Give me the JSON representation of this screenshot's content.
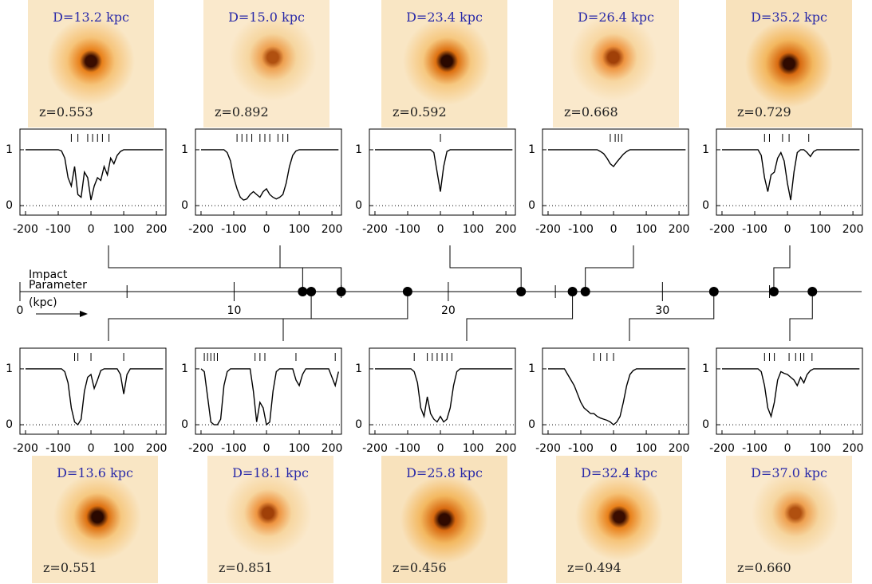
{
  "impact_axis": {
    "label_lines": [
      "Impact",
      "Parameter",
      "(kpc)"
    ],
    "xlim": [
      0,
      39.3
    ],
    "xticks": [
      0,
      10,
      20,
      30
    ],
    "minor_ticks": [
      5,
      15,
      25,
      35
    ]
  },
  "spectra": {
    "xlim": [
      -217,
      229
    ],
    "ylim": [
      -0.17,
      1.37
    ],
    "xticks": [
      -200,
      -100,
      0,
      100,
      200
    ],
    "yticks": [
      0,
      1
    ],
    "velocity": [
      -200,
      -190,
      -180,
      -170,
      -160,
      -150,
      -140,
      -130,
      -120,
      -110,
      -100,
      -90,
      -80,
      -70,
      -60,
      -50,
      -40,
      -30,
      -20,
      -10,
      0,
      10,
      20,
      30,
      40,
      50,
      60,
      70,
      80,
      90,
      100,
      110,
      120,
      130,
      140,
      150,
      160,
      170,
      180,
      190,
      200,
      210,
      220
    ]
  },
  "top_row": [
    {
      "distance": 13.2,
      "distance_label": "D=13.2 kpc",
      "redshift_label": "z=0.553",
      "components": [
        -60,
        -40,
        -10,
        5,
        20,
        35,
        55
      ],
      "flux": [
        1,
        1,
        1,
        1,
        1,
        1,
        1,
        1,
        1,
        1,
        1,
        0.98,
        0.85,
        0.5,
        0.35,
        0.7,
        0.2,
        0.15,
        0.6,
        0.5,
        0.1,
        0.35,
        0.5,
        0.45,
        0.7,
        0.55,
        0.85,
        0.75,
        0.9,
        0.97,
        1,
        1,
        1,
        1,
        1,
        1,
        1,
        1,
        1,
        1,
        1,
        1,
        1
      ]
    },
    {
      "distance": 15.0,
      "distance_label": "D=15.0 kpc",
      "redshift_label": "z=0.892",
      "components": [
        -90,
        -75,
        -60,
        -45,
        -20,
        -5,
        10,
        35,
        50,
        65
      ],
      "flux": [
        1,
        1,
        1,
        1,
        1,
        1,
        1,
        1,
        0.95,
        0.8,
        0.5,
        0.3,
        0.15,
        0.1,
        0.12,
        0.2,
        0.25,
        0.2,
        0.15,
        0.25,
        0.3,
        0.2,
        0.15,
        0.12,
        0.15,
        0.2,
        0.4,
        0.7,
        0.9,
        0.98,
        1,
        1,
        1,
        1,
        1,
        1,
        1,
        1,
        1,
        1,
        1,
        1,
        1
      ]
    },
    {
      "distance": 23.4,
      "distance_label": "D=23.4 kpc",
      "redshift_label": "z=0.592",
      "components": [
        0
      ],
      "flux": [
        1,
        1,
        1,
        1,
        1,
        1,
        1,
        1,
        1,
        1,
        1,
        1,
        1,
        1,
        1,
        1,
        1,
        1,
        0.95,
        0.6,
        0.25,
        0.7,
        0.97,
        1,
        1,
        1,
        1,
        1,
        1,
        1,
        1,
        1,
        1,
        1,
        1,
        1,
        1,
        1,
        1,
        1,
        1,
        1,
        1
      ]
    },
    {
      "distance": 26.4,
      "distance_label": "D=26.4 kpc",
      "redshift_label": "z=0.668",
      "components": [
        -10,
        5,
        15,
        25
      ],
      "flux": [
        1,
        1,
        1,
        1,
        1,
        1,
        1,
        1,
        1,
        1,
        1,
        1,
        1,
        1,
        1,
        1,
        0.97,
        0.93,
        0.85,
        0.75,
        0.7,
        0.78,
        0.85,
        0.92,
        0.97,
        1,
        1,
        1,
        1,
        1,
        1,
        1,
        1,
        1,
        1,
        1,
        1,
        1,
        1,
        1,
        1,
        1,
        1
      ]
    },
    {
      "distance": 35.2,
      "distance_label": "D=35.2 kpc",
      "redshift_label": "z=0.729",
      "components": [
        -70,
        -55,
        -15,
        5,
        65
      ],
      "flux": [
        1,
        1,
        1,
        1,
        1,
        1,
        1,
        1,
        1,
        1,
        1,
        1,
        0.9,
        0.5,
        0.25,
        0.55,
        0.6,
        0.85,
        0.95,
        0.8,
        0.4,
        0.1,
        0.6,
        0.95,
        1,
        1,
        0.95,
        0.88,
        0.97,
        1,
        1,
        1,
        1,
        1,
        1,
        1,
        1,
        1,
        1,
        1,
        1,
        1,
        1
      ]
    }
  ],
  "bottom_row": [
    {
      "distance": 13.6,
      "distance_label": "D=13.6 kpc",
      "redshift_label": "z=0.551",
      "components": [
        -50,
        -40,
        0,
        100
      ],
      "flux": [
        1,
        1,
        1,
        1,
        1,
        1,
        1,
        1,
        1,
        1,
        1,
        1,
        0.95,
        0.75,
        0.3,
        0.05,
        0,
        0.1,
        0.6,
        0.85,
        0.9,
        0.65,
        0.8,
        0.97,
        1,
        1,
        1,
        1,
        1,
        0.9,
        0.55,
        0.9,
        1,
        1,
        1,
        1,
        1,
        1,
        1,
        1,
        1,
        1,
        1
      ]
    },
    {
      "distance": 18.1,
      "distance_label": "D=18.1 kpc",
      "redshift_label": "z=0.851",
      "components": [
        -190,
        -180,
        -170,
        -160,
        -150,
        -35,
        -20,
        -5,
        90,
        210
      ],
      "flux": [
        1,
        0.95,
        0.5,
        0.05,
        0,
        0,
        0.1,
        0.7,
        0.95,
        1,
        1,
        1,
        1,
        1,
        1,
        1,
        0.6,
        0.05,
        0.4,
        0.3,
        0,
        0.05,
        0.6,
        0.95,
        1,
        1,
        1,
        1,
        1,
        0.8,
        0.7,
        0.9,
        1,
        1,
        1,
        1,
        1,
        1,
        1,
        1,
        0.85,
        0.7,
        0.95
      ]
    },
    {
      "distance": 25.8,
      "distance_label": "D=25.8 kpc",
      "redshift_label": "z=0.456",
      "components": [
        -80,
        -40,
        -25,
        -10,
        5,
        20,
        35
      ],
      "flux": [
        1,
        1,
        1,
        1,
        1,
        1,
        1,
        1,
        1,
        1,
        1,
        1,
        0.95,
        0.75,
        0.3,
        0.15,
        0.5,
        0.2,
        0.1,
        0.05,
        0.15,
        0.05,
        0.1,
        0.3,
        0.7,
        0.95,
        1,
        1,
        1,
        1,
        1,
        1,
        1,
        1,
        1,
        1,
        1,
        1,
        1,
        1,
        1,
        1,
        1
      ]
    },
    {
      "distance": 32.4,
      "distance_label": "D=32.4 kpc",
      "redshift_label": "z=0.494",
      "components": [
        -60,
        -40,
        -20,
        0
      ],
      "flux": [
        1,
        1,
        1,
        1,
        1,
        1,
        0.9,
        0.8,
        0.7,
        0.55,
        0.4,
        0.3,
        0.25,
        0.2,
        0.2,
        0.15,
        0.12,
        0.1,
        0.08,
        0.05,
        0,
        0.05,
        0.15,
        0.4,
        0.7,
        0.9,
        0.97,
        1,
        1,
        1,
        1,
        1,
        1,
        1,
        1,
        1,
        1,
        1,
        1,
        1,
        1,
        1,
        1
      ]
    },
    {
      "distance": 37.0,
      "distance_label": "D=37.0 kpc",
      "redshift_label": "z=0.660",
      "components": [
        -70,
        -55,
        -40,
        5,
        25,
        40,
        50,
        75
      ],
      "flux": [
        1,
        1,
        1,
        1,
        1,
        1,
        1,
        1,
        1,
        1,
        1,
        1,
        0.95,
        0.7,
        0.3,
        0.15,
        0.4,
        0.8,
        0.95,
        0.92,
        0.9,
        0.85,
        0.8,
        0.7,
        0.85,
        0.75,
        0.9,
        0.97,
        1,
        1,
        1,
        1,
        1,
        1,
        1,
        1,
        1,
        1,
        1,
        1,
        1,
        1,
        1
      ]
    }
  ]
}
